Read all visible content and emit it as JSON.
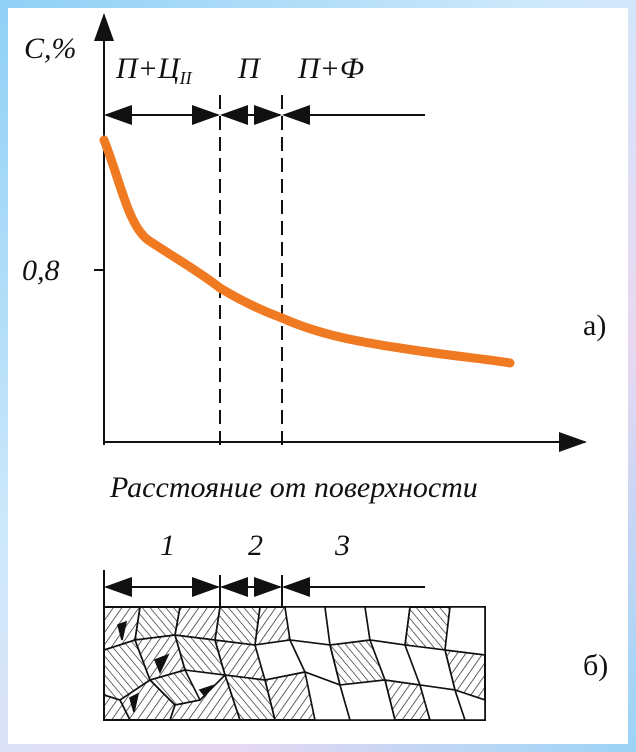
{
  "graph": {
    "y_axis_label": "С,%",
    "zones": [
      {
        "label": "П+Ц",
        "subscript": "II"
      },
      {
        "label": "П"
      },
      {
        "label": "П+Ф"
      }
    ],
    "y_tick_label": "0,8",
    "panel_label": "а)",
    "x_axis_label": "Расстояние от поверхности"
  },
  "schematic": {
    "zones": [
      "1",
      "2",
      "3"
    ],
    "panel_label": "б)"
  }
}
